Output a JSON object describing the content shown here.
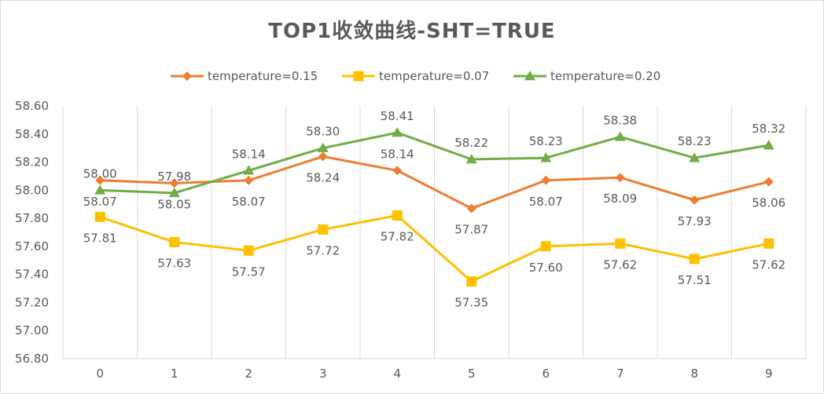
{
  "chart_data": {
    "type": "line",
    "title": "TOP1收敛曲线-SHT=TRUE",
    "xlabel": "",
    "ylabel": "",
    "categories": [
      "0",
      "1",
      "2",
      "3",
      "4",
      "5",
      "6",
      "7",
      "8",
      "9"
    ],
    "ylim": [
      56.8,
      58.6
    ],
    "yticks": [
      "56.80",
      "57.00",
      "57.20",
      "57.40",
      "57.60",
      "57.80",
      "58.00",
      "58.20",
      "58.40",
      "58.60"
    ],
    "grid": "vertical",
    "legend_position": "top",
    "series": [
      {
        "name": "temperature=0.15",
        "color": "#ED7D31",
        "marker": "diamond",
        "values": [
          58.07,
          58.05,
          58.07,
          58.24,
          58.14,
          57.87,
          58.07,
          58.09,
          57.93,
          58.06
        ],
        "labels": [
          "58.07",
          "58.05",
          "58.07",
          "58.24",
          "58.14",
          "57.87",
          "58.07",
          "58.09",
          "57.93",
          "58.06"
        ],
        "label_position": [
          "below",
          "below",
          "below",
          "below",
          "above",
          "below",
          "below",
          "below",
          "below",
          "below"
        ]
      },
      {
        "name": "temperature=0.07",
        "color": "#FFC000",
        "marker": "square",
        "values": [
          57.81,
          57.63,
          57.57,
          57.72,
          57.82,
          57.35,
          57.6,
          57.62,
          57.51,
          57.62
        ],
        "labels": [
          "57.81",
          "57.63",
          "57.57",
          "57.72",
          "57.82",
          "57.35",
          "57.60",
          "57.62",
          "57.51",
          "57.62"
        ],
        "label_position": [
          "below",
          "below",
          "below",
          "below",
          "below",
          "below",
          "below",
          "below",
          "below",
          "below"
        ]
      },
      {
        "name": "temperature=0.20",
        "color": "#70AD47",
        "marker": "triangle",
        "values": [
          58.0,
          57.98,
          58.14,
          58.3,
          58.41,
          58.22,
          58.23,
          58.38,
          58.23,
          58.32
        ],
        "labels": [
          "58.00",
          "57.98",
          "58.14",
          "58.30",
          "58.41",
          "58.22",
          "58.23",
          "58.38",
          "58.23",
          "58.32"
        ],
        "label_position": [
          "above",
          "above",
          "above",
          "above",
          "above",
          "above",
          "above",
          "above",
          "above",
          "above"
        ]
      }
    ]
  }
}
